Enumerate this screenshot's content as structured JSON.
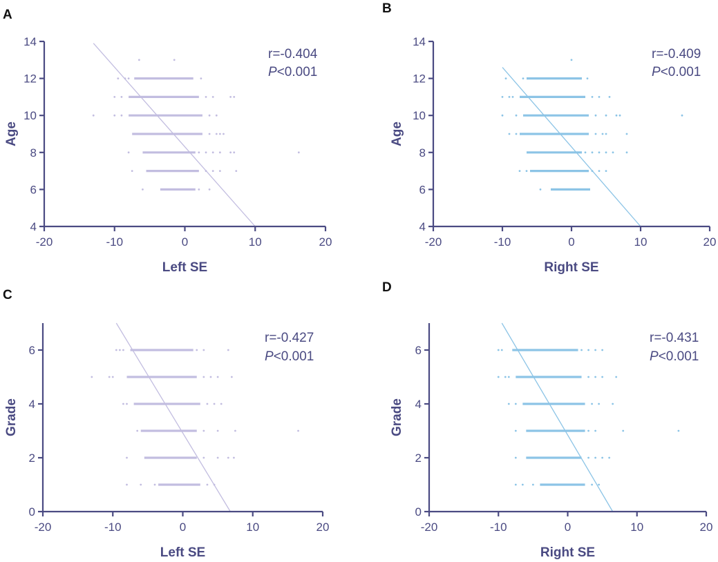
{
  "chart_data": [
    {
      "type": "scatter",
      "panel": "A",
      "xlabel": "Left SE",
      "ylabel": "Age",
      "xlim": [
        -20,
        20
      ],
      "ylim": [
        4,
        14
      ],
      "xticks": [
        -20,
        -10,
        0,
        10,
        20
      ],
      "yticks": [
        4,
        6,
        8,
        10,
        12,
        14
      ],
      "point_color": "#c2bde0",
      "line_color": "#c2bde0",
      "stat_r": "r=-0.404",
      "stat_p_italic": "P",
      "stat_p_rest": "<0.001",
      "fit_line": {
        "x": [
          -13,
          10
        ],
        "y": [
          13.9,
          4
        ]
      },
      "groups": [
        {
          "y": 13,
          "bar": [],
          "points": [
            -6.5,
            -1.5
          ]
        },
        {
          "y": 12,
          "bar": [
            -7.2,
            1.2
          ],
          "points": [
            -9.5,
            -8.5,
            -8,
            2.3
          ]
        },
        {
          "y": 11,
          "bar": [
            -8,
            2
          ],
          "points": [
            -10,
            -9,
            3,
            4,
            6.5,
            7
          ]
        },
        {
          "y": 10,
          "bar": [
            -8,
            2.5
          ],
          "points": [
            -13,
            -10,
            -9,
            3.5,
            4.5
          ]
        },
        {
          "y": 9,
          "bar": [
            -7.5,
            2.5
          ],
          "points": [
            3.5,
            4.5,
            5,
            5.5
          ]
        },
        {
          "y": 8,
          "bar": [
            -6,
            1.5
          ],
          "points": [
            -8,
            2,
            3,
            4,
            5,
            6.5,
            7,
            16.2
          ]
        },
        {
          "y": 7,
          "bar": [
            -5.5,
            2
          ],
          "points": [
            -7.5,
            3,
            4,
            5,
            7.3
          ]
        },
        {
          "y": 6,
          "bar": [
            -3.5,
            1.5
          ],
          "points": [
            -6,
            2,
            3.5
          ]
        }
      ]
    },
    {
      "type": "scatter",
      "panel": "B",
      "xlabel": "Right SE",
      "ylabel": "Age",
      "xlim": [
        -20,
        20
      ],
      "ylim": [
        4,
        14
      ],
      "xticks": [
        -20,
        -10,
        0,
        10,
        20
      ],
      "yticks": [
        4,
        6,
        8,
        10,
        12,
        14
      ],
      "point_color": "#8cc4e6",
      "line_color": "#8cc4e6",
      "stat_r": "r=-0.409",
      "stat_p_italic": "P",
      "stat_p_rest": "<0.001",
      "fit_line": {
        "x": [
          -10,
          10
        ],
        "y": [
          12.6,
          4
        ]
      },
      "groups": [
        {
          "y": 13,
          "bar": [],
          "points": [
            0
          ]
        },
        {
          "y": 12,
          "bar": [
            -6.5,
            1.5
          ],
          "points": [
            -9.5,
            -7,
            -6,
            2.3
          ]
        },
        {
          "y": 11,
          "bar": [
            -7.5,
            2
          ],
          "points": [
            -10,
            -9,
            -8.5,
            3,
            4,
            5.5
          ]
        },
        {
          "y": 10,
          "bar": [
            -7,
            2.5
          ],
          "points": [
            -10,
            -8,
            3.5,
            5,
            6.5,
            7,
            16
          ]
        },
        {
          "y": 9,
          "bar": [
            -7.5,
            2.5
          ],
          "points": [
            -9,
            -8,
            3.5,
            4.5,
            5,
            8
          ]
        },
        {
          "y": 8,
          "bar": [
            -6.5,
            1.5
          ],
          "points": [
            2,
            3,
            4,
            5,
            6,
            8
          ]
        },
        {
          "y": 7,
          "bar": [
            -6,
            2.5
          ],
          "points": [
            -7.5,
            -6.5,
            3,
            4,
            5
          ]
        },
        {
          "y": 6,
          "bar": [
            -3,
            2.7
          ],
          "points": [
            -4.5
          ]
        }
      ]
    },
    {
      "type": "scatter",
      "panel": "C",
      "xlabel": "Left SE",
      "ylabel": "Grade",
      "xlim": [
        -20,
        20
      ],
      "ylim": [
        0,
        7
      ],
      "xticks": [
        -20,
        -10,
        0,
        10,
        20
      ],
      "yticks": [
        0,
        2,
        4,
        6
      ],
      "point_color": "#c2bde0",
      "line_color": "#c2bde0",
      "stat_r": "r=-0.427",
      "stat_p_italic": "P",
      "stat_p_rest": "<0.001",
      "fit_line": {
        "x": [
          -9.5,
          6.8
        ],
        "y": [
          7,
          0
        ]
      },
      "groups": [
        {
          "y": 6,
          "bar": [
            -7.5,
            1.5
          ],
          "points": [
            -9.5,
            -9,
            -8.5,
            2,
            3,
            6.5
          ]
        },
        {
          "y": 5,
          "bar": [
            -8,
            2
          ],
          "points": [
            -13,
            -10.5,
            -10,
            3,
            4,
            5,
            7
          ]
        },
        {
          "y": 4,
          "bar": [
            -7,
            2.5
          ],
          "points": [
            -8.5,
            -8,
            3.5,
            4.5,
            5.5
          ]
        },
        {
          "y": 3,
          "bar": [
            -6,
            2
          ],
          "points": [
            -6.5,
            3,
            5,
            7.5,
            16.5
          ]
        },
        {
          "y": 2,
          "bar": [
            -5.5,
            2
          ],
          "points": [
            -8,
            3,
            5,
            6.5,
            7.3
          ]
        },
        {
          "y": 1,
          "bar": [
            -3.5,
            2.5
          ],
          "points": [
            -8,
            -6,
            -4,
            3.5,
            4.5
          ]
        }
      ]
    },
    {
      "type": "scatter",
      "panel": "D",
      "xlabel": "Right SE",
      "ylabel": "Grade",
      "xlim": [
        -20,
        20
      ],
      "ylim": [
        0,
        7
      ],
      "xticks": [
        -20,
        -10,
        0,
        10,
        20
      ],
      "yticks": [
        0,
        2,
        4,
        6
      ],
      "point_color": "#8cc4e6",
      "line_color": "#8cc4e6",
      "stat_r": "r=-0.431",
      "stat_p_italic": "P",
      "stat_p_rest": "<0.001",
      "fit_line": {
        "x": [
          -9.5,
          6.5
        ],
        "y": [
          7,
          0
        ]
      },
      "groups": [
        {
          "y": 6,
          "bar": [
            -8,
            1.5
          ],
          "points": [
            -10,
            -9.5,
            2,
            3,
            4,
            5
          ]
        },
        {
          "y": 5,
          "bar": [
            -7.5,
            2
          ],
          "points": [
            -10,
            -9,
            -8.5,
            3,
            4,
            5,
            7
          ]
        },
        {
          "y": 4,
          "bar": [
            -6.5,
            2.5
          ],
          "points": [
            -8.5,
            -7.5,
            3.5,
            4.5,
            6.5
          ]
        },
        {
          "y": 3,
          "bar": [
            -6,
            2.5
          ],
          "points": [
            -7.5,
            3,
            4,
            8,
            16
          ]
        },
        {
          "y": 2,
          "bar": [
            -6,
            2
          ],
          "points": [
            -7.5,
            3,
            4,
            5,
            6
          ]
        },
        {
          "y": 1,
          "bar": [
            -4,
            2.5
          ],
          "points": [
            -7.5,
            -6.5,
            -5,
            3.5,
            4.5
          ]
        }
      ]
    }
  ]
}
